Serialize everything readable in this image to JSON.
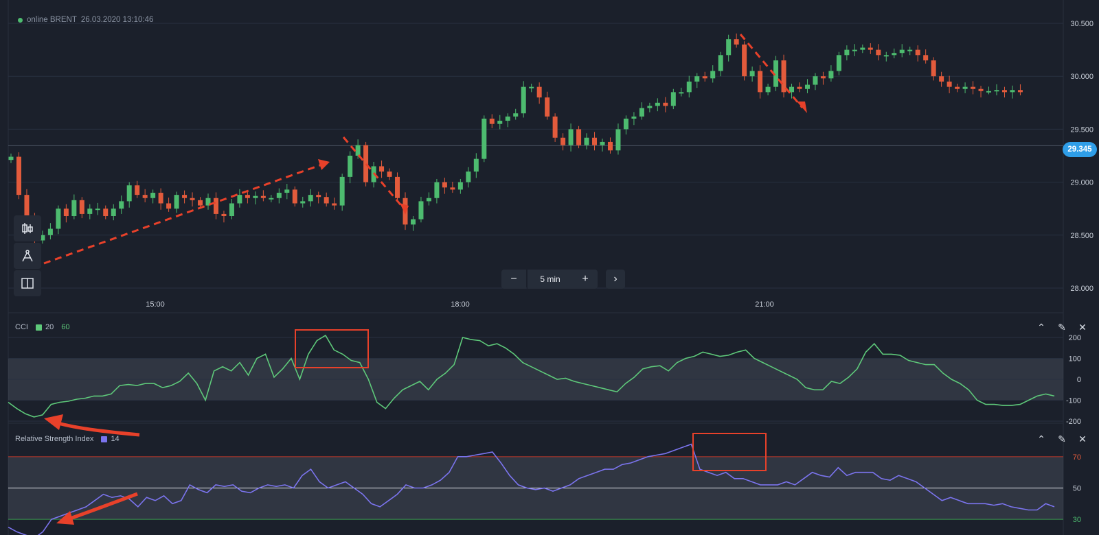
{
  "header": {
    "status": "online BRENT",
    "timestamp": "26.03.2020 13:10:46"
  },
  "toolbar": {
    "chart_type_icon": "candlestick-icon",
    "drawing_icon": "compass-icon",
    "layout_icon": "split-panel-icon"
  },
  "timeframe": {
    "minus": "−",
    "label": "5 min",
    "plus": "+",
    "next": "›"
  },
  "price_tag": "29.345",
  "colors": {
    "bull": "#4dbb6f",
    "bear": "#e35b3c",
    "cci": "#5ec97a",
    "rsi": "#7b74ee",
    "annotation": "#e8412a",
    "background": "#1b202b"
  },
  "chart_data": [
    {
      "type": "candlestick",
      "symbol": "BRENT",
      "interval": "5 min",
      "x_tick_labels": [
        "15:00",
        "18:00",
        "21:00"
      ],
      "y_tick_labels": [
        "30.500",
        "30.000",
        "29.500",
        "29.000",
        "28.500",
        "28.000"
      ],
      "ylim": [
        28.0,
        30.5
      ],
      "current_price": 29.345,
      "closes": [
        29.24,
        28.88,
        28.68,
        28.45,
        28.5,
        28.56,
        28.75,
        28.68,
        28.83,
        28.7,
        28.75,
        28.75,
        28.68,
        28.75,
        28.82,
        28.97,
        28.88,
        28.85,
        28.9,
        28.8,
        28.75,
        28.88,
        28.85,
        28.83,
        28.78,
        28.85,
        28.7,
        28.68,
        28.8,
        28.88,
        28.85,
        28.87,
        28.85,
        28.85,
        28.9,
        28.93,
        28.8,
        28.82,
        28.88,
        28.86,
        28.8,
        28.78,
        29.05,
        29.25,
        29.35,
        29.0,
        29.15,
        29.1,
        29.05,
        28.85,
        28.6,
        28.65,
        28.82,
        28.85,
        29.0,
        28.95,
        28.93,
        29.0,
        29.1,
        29.22,
        29.6,
        29.55,
        29.58,
        29.62,
        29.65,
        29.9,
        29.9,
        29.8,
        29.62,
        29.42,
        29.35,
        29.5,
        29.35,
        29.42,
        29.35,
        29.38,
        29.3,
        29.5,
        29.6,
        29.62,
        29.7,
        29.72,
        29.75,
        29.72,
        29.85,
        29.85,
        29.95,
        30.0,
        29.98,
        30.05,
        30.2,
        30.35,
        30.3,
        30.0,
        30.05,
        29.85,
        29.9,
        30.15,
        29.85,
        29.9,
        29.88,
        29.92,
        30.0,
        29.98,
        30.05,
        30.2,
        30.25,
        30.25,
        30.27,
        30.25,
        30.2,
        30.2,
        30.22,
        30.25,
        30.25,
        30.2,
        30.15,
        30.0,
        29.95,
        29.9,
        29.88,
        29.9,
        29.88,
        29.86,
        29.86,
        29.87,
        29.85,
        29.87,
        29.85
      ],
      "series": [
        {
          "name": "BRENT",
          "values": "closes"
        }
      ]
    },
    {
      "type": "line",
      "title": "CCI",
      "legend": [
        "20",
        "60"
      ],
      "y_tick_labels": [
        "200",
        "100",
        "0",
        "-100",
        "-200"
      ],
      "ylim": [
        -200,
        200
      ],
      "band": [
        -100,
        100
      ],
      "series": [
        {
          "name": "20",
          "values": [
            -110,
            -140,
            -165,
            -180,
            -170,
            -120,
            -110,
            -105,
            -95,
            -90,
            -80,
            -80,
            -70,
            -30,
            -25,
            -30,
            -20,
            -20,
            -40,
            -30,
            -10,
            30,
            -20,
            -100,
            40,
            60,
            40,
            80,
            20,
            100,
            120,
            10,
            50,
            100,
            0,
            120,
            185,
            210,
            140,
            120,
            90,
            80,
            0,
            -110,
            -140,
            -90,
            -50,
            -30,
            -10,
            -50,
            0,
            30,
            70,
            200,
            190,
            185,
            160,
            170,
            150,
            120,
            80,
            60,
            40,
            20,
            0,
            5,
            -10,
            -20,
            -30,
            -40,
            -50,
            -60,
            -20,
            10,
            50,
            60,
            65,
            40,
            80,
            100,
            110,
            130,
            120,
            110,
            115,
            130,
            140,
            100,
            80,
            60,
            40,
            20,
            0,
            -40,
            -50,
            -50,
            -10,
            -20,
            10,
            50,
            130,
            170,
            120,
            120,
            115,
            90,
            80,
            70,
            70,
            30,
            0,
            -20,
            -50,
            -100,
            -120,
            -120,
            -125,
            -125,
            -120,
            -100,
            -80,
            -70,
            -80
          ]
        }
      ]
    },
    {
      "type": "line",
      "title": "Relative Strength Index",
      "legend": [
        "14"
      ],
      "y_tick_labels": [
        "70",
        "50",
        "30"
      ],
      "ylim": [
        20,
        80
      ],
      "band": [
        30,
        70
      ],
      "series": [
        {
          "name": "14",
          "values": [
            25,
            22,
            20,
            18,
            22,
            30,
            32,
            34,
            36,
            38,
            42,
            46,
            44,
            45,
            43,
            38,
            44,
            42,
            45,
            40,
            42,
            52,
            49,
            47,
            52,
            51,
            52,
            48,
            47,
            50,
            52,
            51,
            52,
            50,
            58,
            62,
            54,
            50,
            52,
            54,
            50,
            46,
            40,
            38,
            42,
            46,
            52,
            50,
            50,
            52,
            55,
            60,
            70,
            70,
            71,
            72,
            73,
            66,
            58,
            52,
            50,
            49,
            50,
            48,
            50,
            52,
            56,
            58,
            60,
            62,
            62,
            65,
            66,
            68,
            70,
            71,
            72,
            74,
            76,
            78,
            62,
            60,
            58,
            60,
            56,
            56,
            54,
            52,
            52,
            52,
            54,
            52,
            56,
            60,
            58,
            57,
            63,
            58,
            60,
            60,
            60,
            56,
            55,
            58,
            56,
            54,
            50,
            46,
            42,
            44,
            42,
            40,
            40,
            40,
            39,
            40,
            38,
            37,
            36,
            36,
            40,
            38
          ]
        }
      ]
    }
  ]
}
